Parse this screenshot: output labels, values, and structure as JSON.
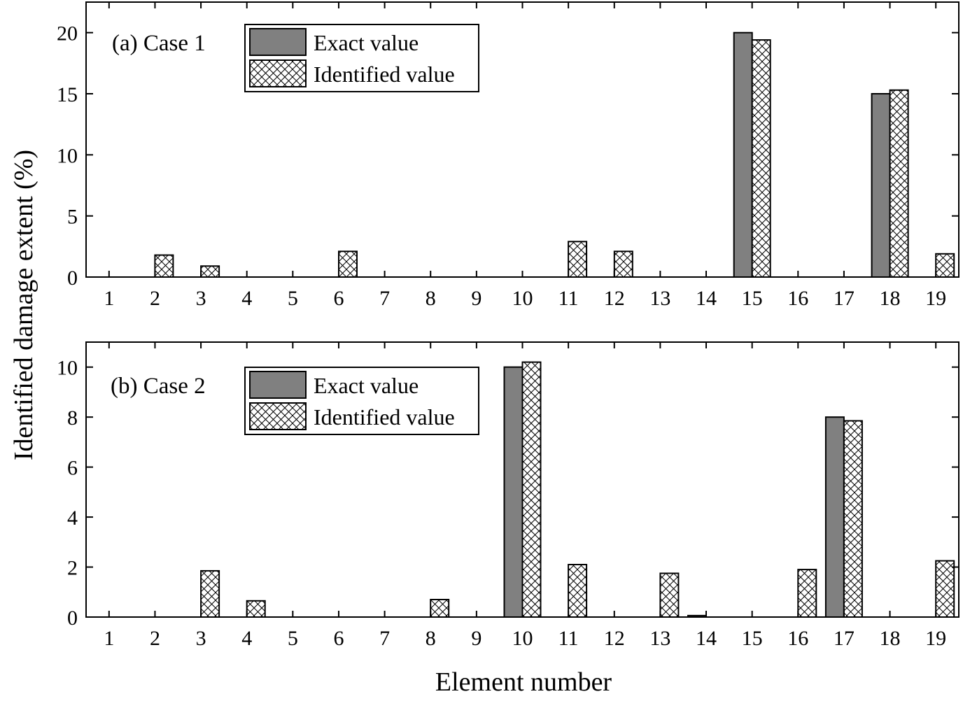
{
  "figure": {
    "ylabel": "Identified damage extent (%)",
    "xlabel": "Element number",
    "legend": {
      "exact": "Exact value",
      "identified": "Identified value"
    },
    "colors": {
      "exact_fill": "#808080",
      "identified_fill": "#ffffff",
      "hatch": "#000000",
      "stroke": "#000000"
    }
  },
  "chart_data": [
    {
      "type": "bar",
      "title": "(a) Case 1",
      "xlabel": "Element number",
      "ylabel": "Identified damage extent (%)",
      "categories": [
        "1",
        "2",
        "3",
        "4",
        "5",
        "6",
        "7",
        "8",
        "9",
        "10",
        "11",
        "12",
        "13",
        "14",
        "15",
        "16",
        "17",
        "18",
        "19"
      ],
      "ylim": [
        0,
        22.5
      ],
      "yticks": [
        0,
        5,
        10,
        15,
        20
      ],
      "legend_position": "top-left",
      "series": [
        {
          "name": "Exact value",
          "values": [
            0,
            0,
            0,
            0,
            0,
            0,
            0,
            0,
            0,
            0,
            0,
            0,
            0,
            0,
            20,
            0,
            0,
            15,
            0
          ]
        },
        {
          "name": "Identified value",
          "values": [
            0,
            1.8,
            0.9,
            0,
            0,
            2.1,
            0,
            0,
            0,
            0,
            2.9,
            2.1,
            0,
            0,
            19.4,
            0,
            0,
            15.3,
            1.9
          ]
        }
      ]
    },
    {
      "type": "bar",
      "title": "(b) Case 2",
      "xlabel": "Element number",
      "ylabel": "Identified damage extent (%)",
      "categories": [
        "1",
        "2",
        "3",
        "4",
        "5",
        "6",
        "7",
        "8",
        "9",
        "10",
        "11",
        "12",
        "13",
        "14",
        "15",
        "16",
        "17",
        "18",
        "19"
      ],
      "ylim": [
        0,
        11
      ],
      "yticks": [
        0,
        2,
        4,
        6,
        8,
        10
      ],
      "legend_position": "top-left",
      "series": [
        {
          "name": "Exact value",
          "values": [
            0,
            0,
            0,
            0,
            0,
            0,
            0,
            0,
            0,
            10,
            0,
            0,
            0,
            0.06,
            0,
            0,
            8,
            0,
            0
          ]
        },
        {
          "name": "Identified value",
          "values": [
            0,
            0,
            1.85,
            0.65,
            0,
            0,
            0,
            0.7,
            0,
            10.2,
            2.1,
            0,
            1.75,
            0,
            0,
            1.9,
            7.85,
            0,
            2.25
          ]
        }
      ]
    }
  ]
}
